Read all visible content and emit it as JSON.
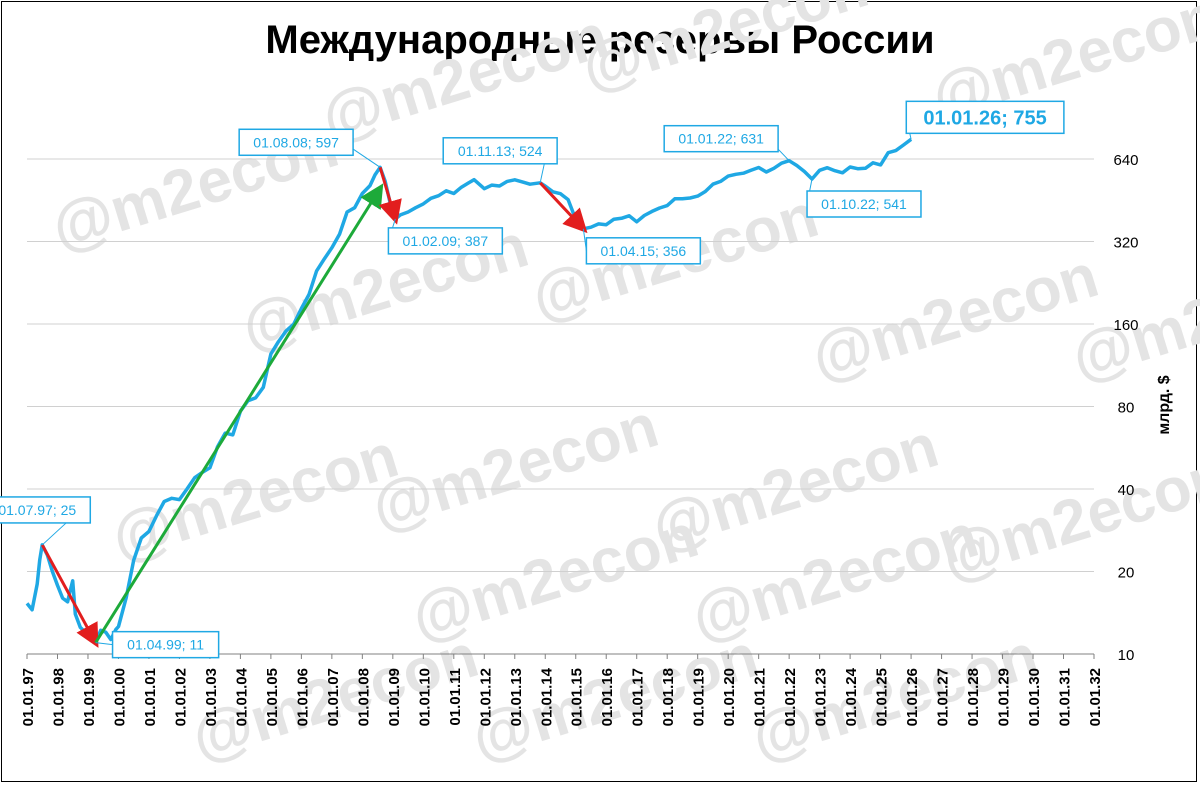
{
  "chart_data": {
    "type": "line",
    "title": "Международные резервы России",
    "ylabel": "млрд. $",
    "y_scale": "log2",
    "ylim": [
      10,
      1024
    ],
    "y_ticks": [
      "10",
      "20",
      "40",
      "80",
      "160",
      "320",
      "640"
    ],
    "y_tick_values": [
      10,
      20,
      40,
      80,
      160,
      320,
      640
    ],
    "xlim": [
      "01.01.97",
      "01.01.32"
    ],
    "x_ticks": [
      "01.01.97",
      "01.01.98",
      "01.01.99",
      "01.01.00",
      "01.01.01",
      "01.01.02",
      "01.01.03",
      "01.01.04",
      "01.01.05",
      "01.01.06",
      "01.01.07",
      "01.01.08",
      "01.01.09",
      "01.01.10",
      "01.01.11",
      "01.01.12",
      "01.01.13",
      "01.01.14",
      "01.01.15",
      "01.01.16",
      "01.01.17",
      "01.01.18",
      "01.01.19",
      "01.01.20",
      "01.01.21",
      "01.01.22",
      "01.01.23",
      "01.01.24",
      "01.01.25",
      "01.01.26",
      "01.01.27",
      "01.01.28",
      "01.01.29",
      "01.01.30",
      "01.01.31",
      "01.01.32"
    ],
    "grid": "horizontal",
    "watermark": "@m2econ",
    "series": [
      {
        "color": "#1FA8E4",
        "points": [
          [
            "01.01.97",
            15.3
          ],
          [
            "01.03.97",
            14.5
          ],
          [
            "01.05.97",
            18.0
          ],
          [
            "01.06.97",
            22.0
          ],
          [
            "01.07.97",
            25.0
          ],
          [
            "01.09.97",
            23.0
          ],
          [
            "01.11.97",
            20.0
          ],
          [
            "01.01.98",
            17.8
          ],
          [
            "01.03.98",
            16.0
          ],
          [
            "01.05.98",
            15.5
          ],
          [
            "01.06.98",
            17.0
          ],
          [
            "01.07.98",
            18.5
          ],
          [
            "01.08.98",
            14.0
          ],
          [
            "01.10.98",
            12.5
          ],
          [
            "01.12.98",
            12.0
          ],
          [
            "01.02.99",
            11.5
          ],
          [
            "01.04.99",
            11.0
          ],
          [
            "01.06.99",
            12.2
          ],
          [
            "01.08.99",
            12.0
          ],
          [
            "01.10.99",
            11.3
          ],
          [
            "01.12.99",
            12.3
          ],
          [
            "01.01.00",
            12.6
          ],
          [
            "01.04.00",
            16.0
          ],
          [
            "01.07.00",
            22.0
          ],
          [
            "01.10.00",
            26.5
          ],
          [
            "01.01.01",
            28.0
          ],
          [
            "01.04.01",
            32.0
          ],
          [
            "01.07.01",
            36.0
          ],
          [
            "01.10.01",
            37.0
          ],
          [
            "01.01.02",
            36.6
          ],
          [
            "01.04.02",
            40.0
          ],
          [
            "01.07.02",
            44.0
          ],
          [
            "01.10.02",
            46.0
          ],
          [
            "01.01.03",
            47.8
          ],
          [
            "01.04.03",
            57.0
          ],
          [
            "01.07.03",
            64.0
          ],
          [
            "01.10.03",
            63.0
          ],
          [
            "01.01.04",
            76.9
          ],
          [
            "01.04.04",
            84.0
          ],
          [
            "01.07.04",
            86.0
          ],
          [
            "01.10.04",
            94.0
          ],
          [
            "01.01.05",
            124.5
          ],
          [
            "01.04.05",
            138.0
          ],
          [
            "01.07.05",
            151.0
          ],
          [
            "01.10.05",
            160.0
          ],
          [
            "01.01.06",
            182.2
          ],
          [
            "01.04.06",
            205.0
          ],
          [
            "01.07.06",
            250.0
          ],
          [
            "01.10.06",
            276.0
          ],
          [
            "01.01.07",
            303.7
          ],
          [
            "01.04.07",
            340.0
          ],
          [
            "01.07.07",
            410.0
          ],
          [
            "01.10.07",
            425.0
          ],
          [
            "01.01.08",
            478.8
          ],
          [
            "01.04.08",
            512.0
          ],
          [
            "01.06.08",
            560.0
          ],
          [
            "01.08.08",
            597.0
          ],
          [
            "01.10.08",
            530.0
          ],
          [
            "01.12.08",
            440.0
          ],
          [
            "01.01.09",
            427.0
          ],
          [
            "01.02.09",
            387.0
          ],
          [
            "01.04.09",
            400.0
          ],
          [
            "01.07.09",
            410.0
          ],
          [
            "01.10.09",
            425.0
          ],
          [
            "01.01.10",
            439.0
          ],
          [
            "01.04.10",
            460.0
          ],
          [
            "01.07.10",
            470.0
          ],
          [
            "01.10.10",
            490.0
          ],
          [
            "01.01.11",
            479.0
          ],
          [
            "01.04.11",
            505.0
          ],
          [
            "01.07.11",
            525.0
          ],
          [
            "01.09.11",
            538.0
          ],
          [
            "01.01.12",
            498.6
          ],
          [
            "01.04.12",
            514.0
          ],
          [
            "01.07.12",
            510.0
          ],
          [
            "01.10.12",
            530.0
          ],
          [
            "01.01.13",
            537.6
          ],
          [
            "01.04.13",
            528.0
          ],
          [
            "01.07.13",
            518.0
          ],
          [
            "01.11.13",
            524.0
          ],
          [
            "01.01.14",
            509.6
          ],
          [
            "01.04.14",
            486.0
          ],
          [
            "01.07.14",
            478.0
          ],
          [
            "01.10.14",
            455.0
          ],
          [
            "01.01.15",
            385.5
          ],
          [
            "01.04.15",
            356.0
          ],
          [
            "01.07.15",
            361.0
          ],
          [
            "01.10.15",
            371.0
          ],
          [
            "01.01.16",
            368.4
          ],
          [
            "01.04.16",
            386.0
          ],
          [
            "01.07.16",
            389.0
          ],
          [
            "01.10.16",
            397.0
          ],
          [
            "01.01.17",
            377.7
          ],
          [
            "01.04.17",
            398.0
          ],
          [
            "01.07.17",
            412.0
          ],
          [
            "01.10.17",
            424.0
          ],
          [
            "01.01.18",
            432.7
          ],
          [
            "01.04.18",
            458.0
          ],
          [
            "01.07.18",
            458.0
          ],
          [
            "01.10.18",
            461.0
          ],
          [
            "01.01.19",
            468.5
          ],
          [
            "01.04.19",
            487.0
          ],
          [
            "01.07.19",
            518.0
          ],
          [
            "01.10.19",
            530.0
          ],
          [
            "01.01.20",
            554.4
          ],
          [
            "01.04.20",
            563.0
          ],
          [
            "01.07.20",
            568.0
          ],
          [
            "01.10.20",
            582.0
          ],
          [
            "01.01.21",
            595.8
          ],
          [
            "01.04.21",
            574.0
          ],
          [
            "01.07.21",
            592.0
          ],
          [
            "01.10.21",
            618.0
          ],
          [
            "01.01.22",
            631.0
          ],
          [
            "01.04.22",
            606.0
          ],
          [
            "01.07.22",
            576.0
          ],
          [
            "01.10.22",
            541.0
          ],
          [
            "01.01.23",
            582.0
          ],
          [
            "01.04.23",
            595.0
          ],
          [
            "01.07.23",
            580.0
          ],
          [
            "01.10.23",
            570.0
          ],
          [
            "01.01.24",
            598.6
          ],
          [
            "01.04.24",
            590.0
          ],
          [
            "01.07.24",
            592.0
          ],
          [
            "01.10.24",
            620.0
          ],
          [
            "01.01.25",
            609.0
          ],
          [
            "01.04.25",
            675.0
          ],
          [
            "01.07.25",
            687.0
          ],
          [
            "01.10.25",
            720.0
          ],
          [
            "01.01.26",
            755.0
          ]
        ]
      }
    ],
    "annotations": [
      {
        "label": "01.07.97; 25",
        "date": "01.07.97",
        "value": 25
      },
      {
        "label": "01.04.99; 11",
        "date": "01.04.99",
        "value": 11
      },
      {
        "label": "01.08.08; 597",
        "date": "01.08.08",
        "value": 597
      },
      {
        "label": "01.02.09; 387",
        "date": "01.02.09",
        "value": 387
      },
      {
        "label": "01.11.13; 524",
        "date": "01.11.13",
        "value": 524
      },
      {
        "label": "01.04.15; 356",
        "date": "01.04.15",
        "value": 356
      },
      {
        "label": "01.01.22; 631",
        "date": "01.01.22",
        "value": 631
      },
      {
        "label": "01.10.22; 541",
        "date": "01.10.22",
        "value": 541
      },
      {
        "label": "01.01.26; 755",
        "date": "01.01.26",
        "value": 755
      }
    ],
    "trend_arrows": [
      {
        "from": [
          "01.07.97",
          25
        ],
        "to": [
          "01.04.99",
          11
        ],
        "color": "#E21E1E"
      },
      {
        "from": [
          "01.04.99",
          11
        ],
        "to": [
          "01.08.08",
          500
        ],
        "color": "#1DAA3A"
      },
      {
        "from": [
          "01.08.08",
          597
        ],
        "to": [
          "01.02.09",
          387
        ],
        "color": "#E21E1E"
      },
      {
        "from": [
          "01.11.13",
          524
        ],
        "to": [
          "01.04.15",
          356
        ],
        "color": "#E21E1E"
      }
    ]
  }
}
